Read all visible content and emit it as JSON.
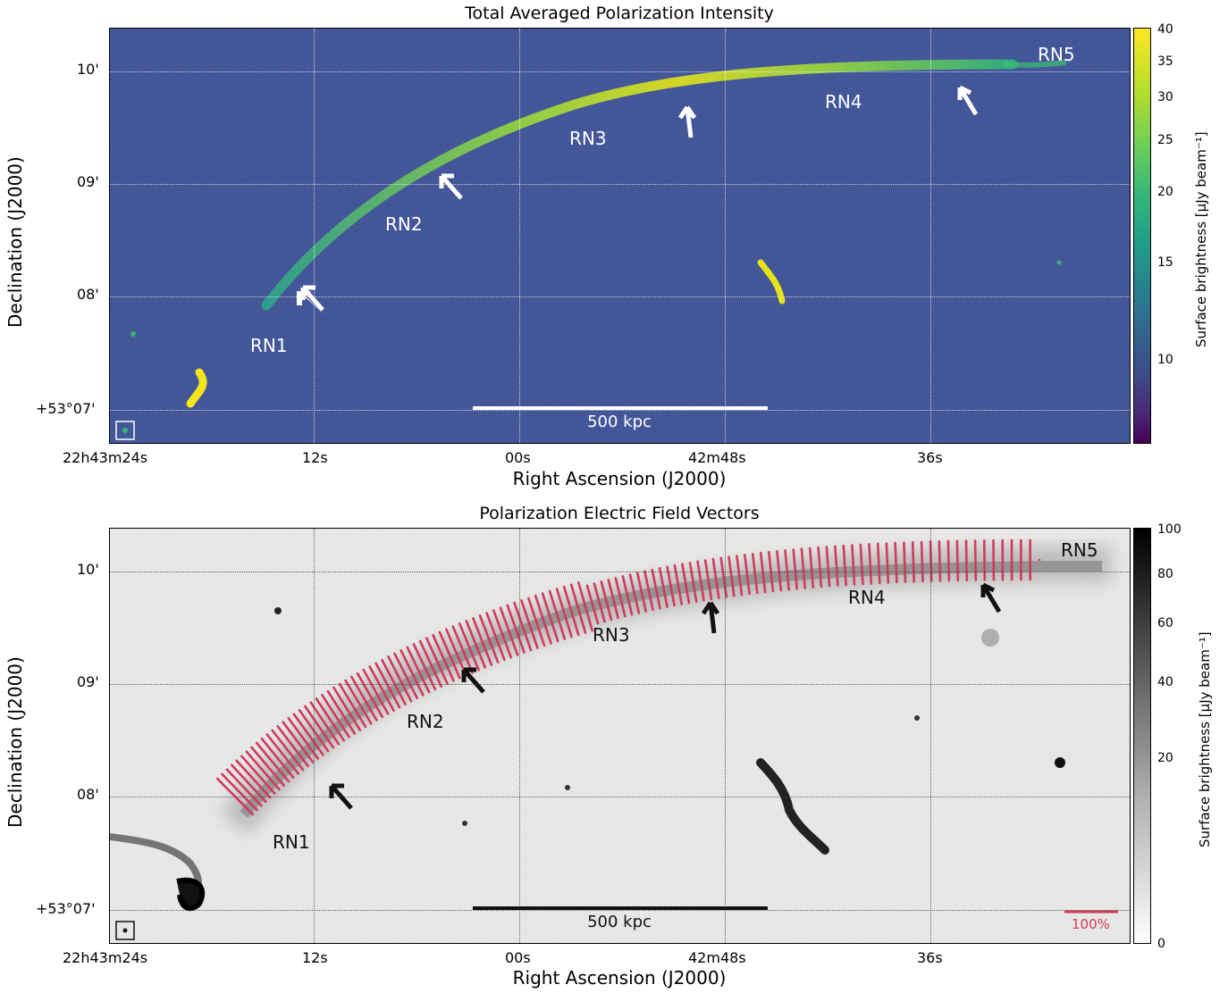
{
  "top": {
    "title": "Total Averaged Polarization Intensity",
    "labels": [
      "RN1",
      "RN2",
      "RN3",
      "RN4",
      "RN5"
    ],
    "scalebar": "500 kpc",
    "colorbar_ticks": [
      "40",
      "35",
      "30",
      "25",
      "20",
      "15",
      "10"
    ],
    "colorbar_label": "Surface brightness [μJy beam⁻¹]"
  },
  "bottom": {
    "title": "Polarization Electric Field Vectors",
    "labels": [
      "RN1",
      "RN2",
      "RN3",
      "RN4",
      "RN5"
    ],
    "scalebar": "500 kpc",
    "vector_scale": "100%",
    "colorbar_ticks": [
      "100",
      "80",
      "60",
      "40",
      "20",
      "0"
    ],
    "colorbar_label": "Surface brightness [μJy beam⁻¹]"
  },
  "axes": {
    "xlabel": "Right Ascension (J2000)",
    "ylabel": "Declination (J2000)",
    "xticks": [
      "22h43m24s",
      "12s",
      "00s",
      "42m48s",
      "36s"
    ],
    "yticks": [
      "10'",
      "09'",
      "08'",
      "+53°07'"
    ]
  },
  "colors": {
    "viridis_bg": "#2d3f88",
    "relic_yellow": "#e6e419",
    "vector_red": "#d23a5a"
  }
}
